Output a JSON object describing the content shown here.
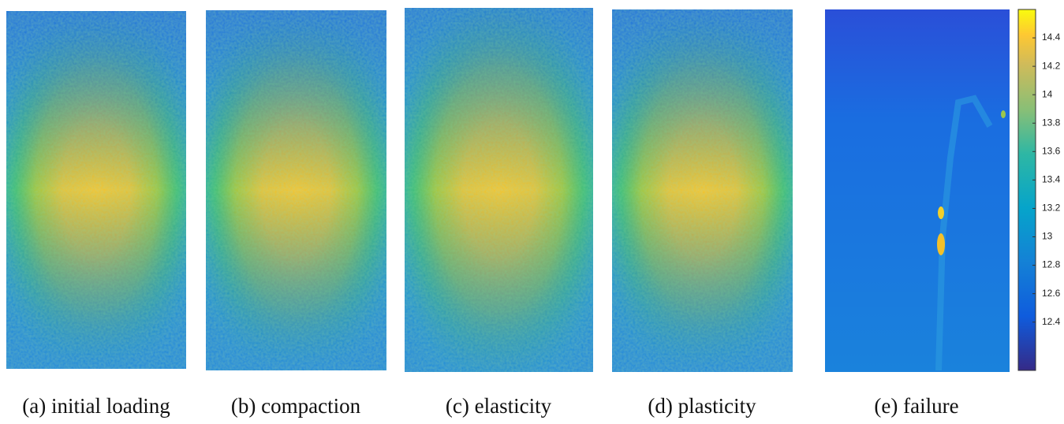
{
  "panels": [
    {
      "caption": "(a) initial loading"
    },
    {
      "caption": "(b) compaction"
    },
    {
      "caption": "(c) elasticity"
    },
    {
      "caption": "(d) plasticity"
    },
    {
      "caption": "(e) failure"
    }
  ],
  "colorbar": {
    "lim": [
      12.06,
      14.6
    ],
    "ticks": [
      12.4,
      12.6,
      12.8,
      13,
      13.2,
      13.4,
      13.6,
      13.8,
      14,
      14.2,
      14.4
    ]
  }
}
